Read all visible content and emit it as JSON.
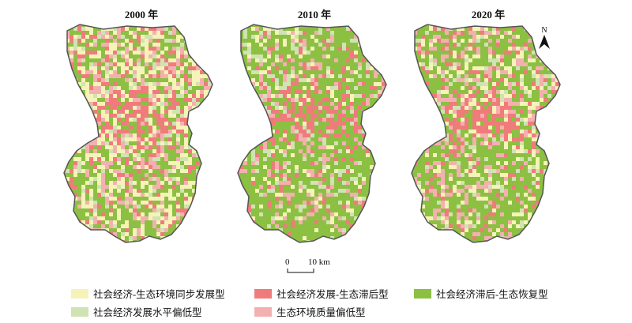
{
  "titles": [
    "2000 年",
    "2010 年",
    "2020 年"
  ],
  "north_label": "N",
  "scale": {
    "zero": "0",
    "ten": "10 km"
  },
  "legend": [
    {
      "label": "社会经济-生态环境同步发展型",
      "color": "#f5f3b8"
    },
    {
      "label": "社会经济发展-生态滞后型",
      "color": "#f07b7b"
    },
    {
      "label": "社会经济滞后-生态恢复型",
      "color": "#8cc042"
    },
    {
      "label": "社会经济发展水平偏低型",
      "color": "#cfe3b3"
    },
    {
      "label": "生态环境质量偏低型",
      "color": "#f4b0b0"
    }
  ],
  "maps": [
    {
      "year": "2000",
      "mix": {
        "sync": 0.3,
        "red": 0.14,
        "green": 0.28,
        "lightgreen": 0.1,
        "pink": 0.18
      }
    },
    {
      "year": "2010",
      "mix": {
        "sync": 0.1,
        "red": 0.1,
        "green": 0.55,
        "lightgreen": 0.13,
        "pink": 0.12
      }
    },
    {
      "year": "2020",
      "mix": {
        "sync": 0.17,
        "red": 0.1,
        "green": 0.45,
        "lightgreen": 0.1,
        "pink": 0.18
      }
    }
  ]
}
